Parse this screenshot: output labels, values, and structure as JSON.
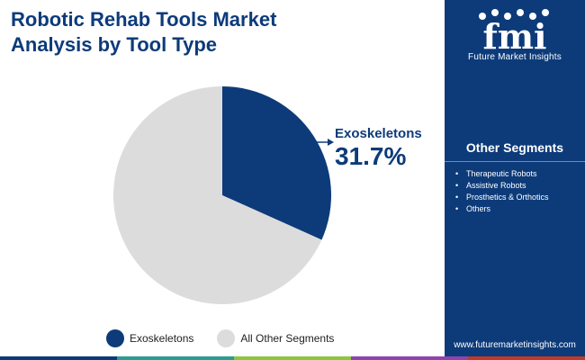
{
  "title_lines": [
    "Robotic Rehab Tools Market",
    "Analysis by Tool Type"
  ],
  "brand": {
    "logo_text": "fmi",
    "tagline": "Future Market Insights",
    "website": "www.futuremarketinsights.com"
  },
  "other_segments": {
    "heading": "Other Segments",
    "items": [
      "Therapeutic Robots",
      "Assistive Robots",
      "Prosthetics & Orthotics",
      "Others"
    ]
  },
  "callout": {
    "label": "Exoskeletons",
    "value": "31.7%"
  },
  "colors": {
    "primary": "#0d3b7a",
    "other": "#dcdcdc",
    "bar": [
      "#0d3b7a",
      "#2a9d8f",
      "#8cc63f",
      "#8e44ad",
      "#c0392b"
    ]
  },
  "chart_data": {
    "type": "pie",
    "categories": [
      "Exoskeletons",
      "All Other Segments"
    ],
    "values": [
      31.7,
      68.3
    ],
    "colors": [
      "#0d3b7a",
      "#dcdcdc"
    ],
    "start_angle_deg": 0,
    "legend": "bottom"
  }
}
